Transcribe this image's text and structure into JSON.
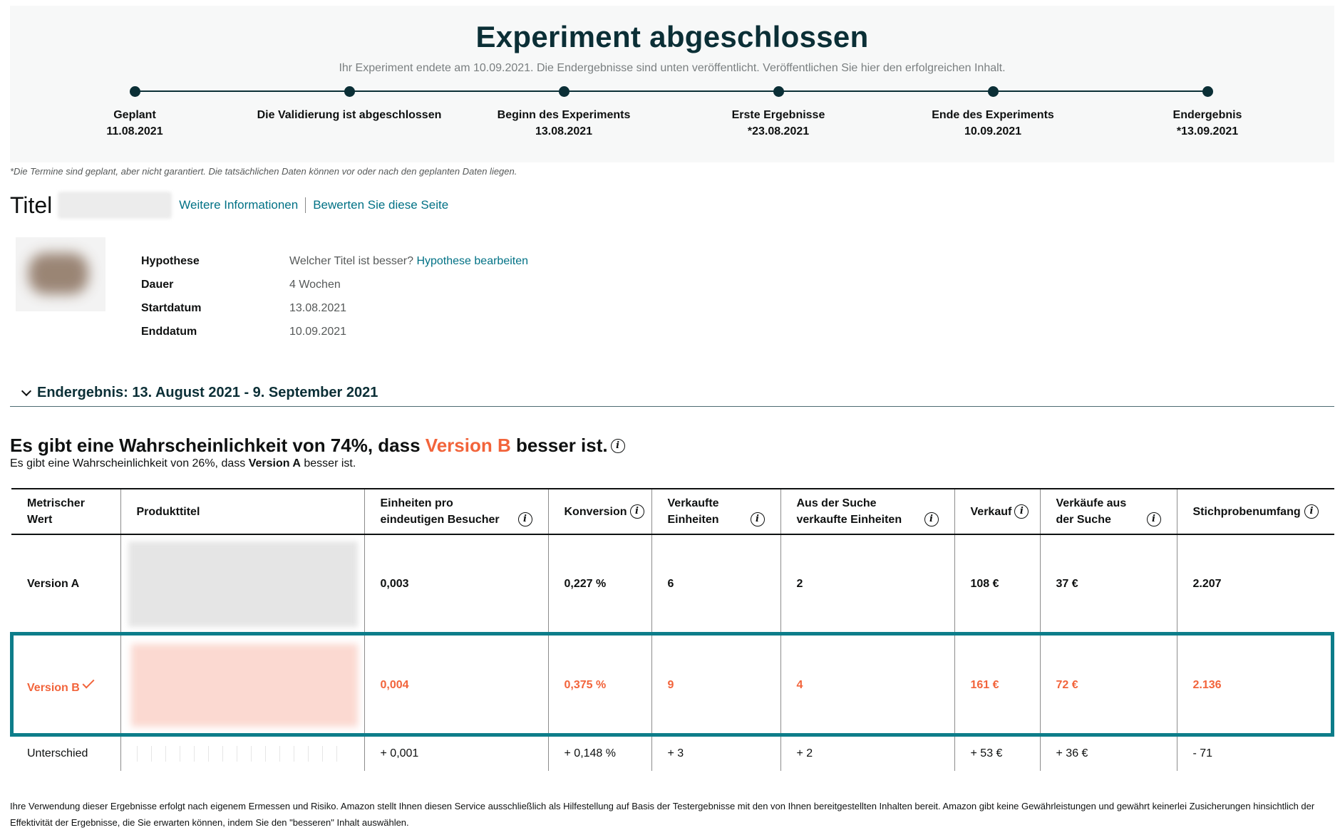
{
  "banner": {
    "title": "Experiment abgeschlossen",
    "subtitle": "Ihr Experiment endete am 10.09.2021. Die Endergebnisse sind unten veröffentlicht. Veröffentlichen Sie hier den erfolgreichen Inhalt.",
    "milestones": [
      {
        "label": "Geplant",
        "date": "11.08.2021"
      },
      {
        "label": "Die Validierung ist abgeschlossen",
        "date": ""
      },
      {
        "label": "Beginn des Experiments",
        "date": "13.08.2021"
      },
      {
        "label": "Erste Ergebnisse",
        "date": "*23.08.2021"
      },
      {
        "label": "Ende des Experiments",
        "date": "10.09.2021"
      },
      {
        "label": "Endergebnis",
        "date": "*13.09.2021"
      }
    ]
  },
  "note": "*Die Termine sind geplant, aber nicht garantiert. Die tatsächlichen Daten können vor oder nach den geplanten Daten liegen.",
  "title_row": {
    "label": "Titel",
    "more_info_link": "Weitere Informationen",
    "rate_link": "Bewerten Sie diese Seite"
  },
  "details": {
    "hypothesis_label": "Hypothese",
    "hypothesis_value": "Welcher Titel ist besser?",
    "hypothesis_edit_link": "Hypothese bearbeiten",
    "duration_label": "Dauer",
    "duration_value": "4 Wochen",
    "start_label": "Startdatum",
    "start_value": "13.08.2021",
    "end_label": "Enddatum",
    "end_value": "10.09.2021"
  },
  "section": {
    "title": "Endergebnis: 13. August 2021 - 9. September 2021"
  },
  "probability": {
    "main_prefix": "Es gibt eine Wahrscheinlichkeit von 74%, dass",
    "main_version": "Version B",
    "main_suffix": "besser ist.",
    "sub_prefix": "Es gibt eine Wahrscheinlichkeit von 26%, dass",
    "sub_version": "Version A",
    "sub_suffix": "besser ist."
  },
  "table": {
    "headers": [
      "Metrischer Wert",
      "Produkttitel",
      "Einheiten pro eindeutigen Besucher",
      "Konversion",
      "Verkaufte Einheiten",
      "Aus der Suche verkaufte Einheiten",
      "Verkauf",
      "Verkäufe aus der Suche",
      "Stichprobenumfang"
    ],
    "rows": [
      {
        "name": "Version A",
        "values": [
          "0,003",
          "0,227 %",
          "6",
          "2",
          "108 €",
          "37 €",
          "2.207"
        ]
      },
      {
        "name": "Version B",
        "values": [
          "0,004",
          "0,375 %",
          "9",
          "4",
          "161 €",
          "72 €",
          "2.136"
        ]
      },
      {
        "name": "Unterschied",
        "values": [
          "+ 0,001",
          "+ 0,148 %",
          "+ 3",
          "+ 2",
          "+ 53 €",
          "+ 36 €",
          "- 71"
        ]
      }
    ]
  },
  "colors": {
    "accent_orange": "#f2643b",
    "teal_highlight": "#0d7d8a",
    "link": "#007185",
    "heading_dark": "#0b2f36"
  },
  "disclaimer": "Ihre Verwendung dieser Ergebnisse erfolgt nach eigenem Ermessen und Risiko. Amazon stellt Ihnen diesen Service ausschließlich als Hilfestellung auf Basis der Testergebnisse mit den von Ihnen bereitgestellten Inhalten bereit. Amazon gibt keine Gewährleistungen und gewährt keinerlei Zusicherungen hinsichtlich der Effektivität der Ergebnisse, die Sie erwarten können, indem Sie den \"besseren\" Inhalt auswählen."
}
